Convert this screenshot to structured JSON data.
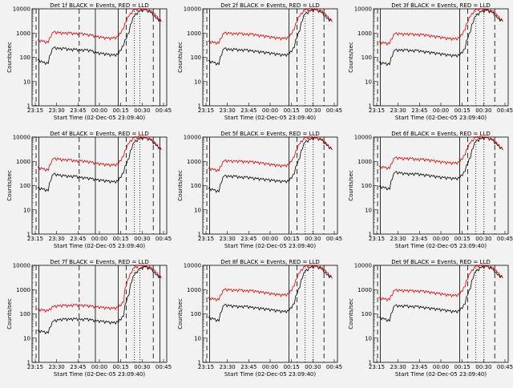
{
  "figure": {
    "background": "#f2f2f2",
    "colors": {
      "black_series": "#000000",
      "red_series": "#e00000",
      "axes": "#000000"
    }
  },
  "chart_data": [
    {
      "type": "line",
      "title": "Det  1f BLACK = Events, RED = LLD",
      "xlabel": "Start Time (02-Dec-05 23:09:40)",
      "ylabel": "Counts/sec",
      "x_ticks": [
        "23:15",
        "23:30",
        "23:45",
        "00:00",
        "00:15",
        "00:30",
        "00:45"
      ],
      "y_ticks": [
        "1",
        "10",
        "100",
        "1000",
        "10000"
      ],
      "y_scale": "log",
      "ylim": [
        1,
        10000
      ],
      "xlim_min": [
        3.7,
        100
      ],
      "series": [
        {
          "color": "black",
          "values": [
            80,
            60,
            55,
            250,
            220,
            230,
            200,
            210,
            190,
            200,
            180,
            150,
            140,
            130,
            120,
            130,
            300,
            1000,
            5000,
            8000,
            9000,
            7000,
            4000,
            3000
          ]
        },
        {
          "color": "red",
          "values": [
            500,
            450,
            400,
            1100,
            1000,
            950,
            1000,
            900,
            950,
            850,
            800,
            700,
            650,
            600,
            600,
            700,
            1500,
            5000,
            9000,
            9500,
            9000,
            8000,
            5000,
            3000
          ]
        }
      ],
      "markers": {
        "solid": [
          5,
          47,
          64,
          95
        ],
        "dashed": [
          3,
          35,
          70,
          90
        ],
        "dotted": [
          76,
          80
        ]
      }
    },
    {
      "type": "line",
      "title": "Det  2f BLACK = Events, RED = LLD",
      "xlabel": "Start Time (02-Dec-05 23:09:40)",
      "ylabel": "Counts/sec",
      "x_ticks": [
        "23:15",
        "23:30",
        "23:45",
        "00:00",
        "00:15",
        "00:30",
        "00:45"
      ],
      "y_ticks": [
        "1",
        "10",
        "100",
        "1000",
        "10000"
      ],
      "y_scale": "log",
      "ylim": [
        1,
        10000
      ],
      "series": [
        {
          "color": "black",
          "values": [
            70,
            60,
            50,
            230,
            200,
            210,
            190,
            200,
            180,
            170,
            160,
            150,
            140,
            130,
            120,
            130,
            250,
            1200,
            6000,
            8000,
            9000,
            7000,
            4000,
            3000
          ]
        },
        {
          "color": "red",
          "values": [
            450,
            400,
            380,
            1000,
            950,
            900,
            950,
            850,
            900,
            800,
            750,
            700,
            650,
            600,
            580,
            650,
            1400,
            5000,
            9000,
            9500,
            9000,
            8000,
            5000,
            3000
          ]
        }
      ],
      "markers": {
        "solid": [
          5,
          64
        ],
        "dashed": [
          3,
          70,
          90
        ],
        "dotted": [
          76,
          82
        ]
      }
    },
    {
      "type": "line",
      "title": "Det  3f BLACK = Events, RED = LLD",
      "xlabel": "Start Time (02-Dec-05 23:09:40)",
      "ylabel": "Counts/sec",
      "x_ticks": [
        "23:15",
        "23:30",
        "23:45",
        "00:00",
        "00:15",
        "00:30",
        "00:45"
      ],
      "y_ticks": [
        "1",
        "10",
        "100",
        "1000",
        "10000"
      ],
      "y_scale": "log",
      "ylim": [
        1,
        10000
      ],
      "series": [
        {
          "color": "black",
          "values": [
            60,
            55,
            50,
            200,
            190,
            200,
            180,
            190,
            170,
            160,
            150,
            140,
            130,
            120,
            115,
            120,
            220,
            1100,
            5000,
            7500,
            8500,
            7000,
            4000,
            3000
          ]
        },
        {
          "color": "red",
          "values": [
            420,
            380,
            360,
            950,
            900,
            880,
            900,
            820,
            860,
            780,
            720,
            680,
            620,
            580,
            560,
            620,
            1300,
            4800,
            9000,
            9500,
            9000,
            8000,
            5000,
            3000
          ]
        }
      ],
      "markers": {
        "solid": [
          5,
          64
        ],
        "dashed": [
          3,
          70,
          90
        ],
        "dotted": [
          76,
          82
        ]
      }
    },
    {
      "type": "line",
      "title": "Det  4f BLACK = Events, RED = LLD",
      "xlabel": "Start Time (02-Dec-05 23:09:40)",
      "ylabel": "Counts/sec",
      "x_ticks": [
        "23:15",
        "23:30",
        "23:45",
        "00:00",
        "00:15",
        "00:30",
        "00:45"
      ],
      "y_ticks": [
        "1",
        "10",
        "100",
        "1000",
        "10000"
      ],
      "y_scale": "log",
      "ylim": [
        1,
        10000
      ],
      "series": [
        {
          "color": "black",
          "values": [
            80,
            70,
            60,
            300,
            260,
            250,
            230,
            240,
            210,
            200,
            190,
            170,
            160,
            150,
            140,
            150,
            330,
            1300,
            6000,
            8500,
            9000,
            7500,
            4500,
            3000
          ]
        },
        {
          "color": "red",
          "values": [
            550,
            480,
            420,
            1300,
            1200,
            1100,
            1150,
            1000,
            1050,
            950,
            900,
            800,
            750,
            700,
            680,
            750,
            1600,
            5500,
            9500,
            9800,
            9200,
            8000,
            5000,
            3000
          ]
        }
      ],
      "markers": {
        "solid": [
          5,
          47,
          64,
          95
        ],
        "dashed": [
          3,
          35,
          70,
          90
        ],
        "dotted": [
          76,
          80
        ]
      }
    },
    {
      "type": "line",
      "title": "Det  5f BLACK = Events, RED = LLD",
      "xlabel": "Start Time (02-Dec-05 23:09:40)",
      "ylabel": "Counts/sec",
      "x_ticks": [
        "23:15",
        "23:30",
        "23:45",
        "00:00",
        "00:15",
        "00:30",
        "00:45"
      ],
      "y_ticks": [
        "1",
        "10",
        "100",
        "1000",
        "10000"
      ],
      "y_scale": "log",
      "ylim": [
        1,
        10000
      ],
      "series": [
        {
          "color": "black",
          "values": [
            75,
            65,
            55,
            250,
            230,
            240,
            210,
            220,
            200,
            190,
            180,
            170,
            160,
            150,
            145,
            150,
            300,
            1300,
            6000,
            8000,
            9000,
            7500,
            4500,
            3000
          ]
        },
        {
          "color": "red",
          "values": [
            500,
            450,
            400,
            1050,
            1000,
            980,
            1000,
            920,
            950,
            880,
            820,
            760,
            700,
            660,
            640,
            700,
            1500,
            5200,
            9200,
            9600,
            9100,
            8000,
            5000,
            3000
          ]
        }
      ],
      "markers": {
        "solid": [
          5,
          64
        ],
        "dashed": [
          3,
          70,
          90
        ],
        "dotted": [
          76,
          82
        ]
      }
    },
    {
      "type": "line",
      "title": "Det  6f BLACK = Events, RED = LLD",
      "xlabel": "Start Time (02-Dec-05 23:09:40)",
      "ylabel": "Counts/sec",
      "x_ticks": [
        "23:15",
        "23:30",
        "23:45",
        "00:00",
        "00:15",
        "00:30",
        "00:45"
      ],
      "y_ticks": [
        "1",
        "10",
        "100",
        "1000",
        "10000"
      ],
      "y_scale": "log",
      "ylim": [
        1,
        10000
      ],
      "series": [
        {
          "color": "black",
          "values": [
            90,
            80,
            70,
            350,
            320,
            300,
            290,
            300,
            270,
            260,
            240,
            220,
            210,
            200,
            190,
            200,
            380,
            1400,
            6500,
            8500,
            9200,
            7500,
            4500,
            3000
          ]
        },
        {
          "color": "red",
          "values": [
            600,
            550,
            500,
            1400,
            1300,
            1250,
            1300,
            1150,
            1200,
            1100,
            1050,
            950,
            900,
            850,
            820,
            900,
            1800,
            5800,
            9500,
            9800,
            9200,
            8000,
            5000,
            3000
          ]
        }
      ],
      "markers": {
        "solid": [
          5,
          64
        ],
        "dashed": [
          3,
          70,
          90
        ],
        "dotted": [
          76,
          82
        ]
      }
    },
    {
      "type": "line",
      "title": "Det  7f BLACK = Events, RED = LLD",
      "xlabel": "Start Time (02-Dec-05 23:09:40)",
      "ylabel": "Counts/sec",
      "x_ticks": [
        "23:15",
        "23:30",
        "23:45",
        "00:00",
        "00:15",
        "00:30",
        "00:45"
      ],
      "y_ticks": [
        "1",
        "10",
        "100",
        "1000",
        "10000"
      ],
      "y_scale": "log",
      "ylim": [
        1,
        10000
      ],
      "series": [
        {
          "color": "black",
          "values": [
            20,
            18,
            16,
            50,
            55,
            60,
            58,
            62,
            56,
            60,
            55,
            50,
            48,
            45,
            42,
            45,
            80,
            600,
            4000,
            7000,
            8500,
            7000,
            4000,
            3000
          ]
        },
        {
          "color": "red",
          "values": [
            150,
            140,
            130,
            200,
            210,
            220,
            210,
            230,
            220,
            215,
            200,
            190,
            180,
            170,
            165,
            180,
            300,
            3000,
            8000,
            9500,
            9000,
            8000,
            5000,
            3000
          ]
        }
      ],
      "markers": {
        "solid": [
          5,
          47,
          64,
          95
        ],
        "dashed": [
          3,
          35,
          70,
          90
        ],
        "dotted": [
          76,
          80
        ]
      }
    },
    {
      "type": "line",
      "title": "Det  8f BLACK = Events, RED = LLD",
      "xlabel": "Start Time (02-Dec-05 23:09:40)",
      "ylabel": "Counts/sec",
      "x_ticks": [
        "23:15",
        "23:30",
        "23:45",
        "00:00",
        "00:15",
        "00:30",
        "00:45"
      ],
      "y_ticks": [
        "1",
        "10",
        "100",
        "1000",
        "10000"
      ],
      "y_scale": "log",
      "ylim": [
        1,
        10000
      ],
      "series": [
        {
          "color": "black",
          "values": [
            70,
            60,
            50,
            230,
            210,
            200,
            190,
            200,
            180,
            170,
            160,
            150,
            140,
            130,
            120,
            130,
            260,
            1200,
            5500,
            8000,
            9000,
            7000,
            4000,
            3000
          ]
        },
        {
          "color": "red",
          "values": [
            450,
            400,
            380,
            1000,
            950,
            900,
            950,
            850,
            900,
            800,
            760,
            700,
            650,
            600,
            580,
            640,
            1400,
            5000,
            9000,
            9500,
            9000,
            8000,
            5000,
            3000
          ]
        }
      ],
      "markers": {
        "solid": [
          5,
          64
        ],
        "dashed": [
          3,
          70,
          90
        ],
        "dotted": [
          76,
          82
        ]
      }
    },
    {
      "type": "line",
      "title": "Det  9f BLACK = Events, RED = LLD",
      "xlabel": "Start Time (02-Dec-05 23:09:40)",
      "ylabel": "Counts/sec",
      "x_ticks": [
        "23:15",
        "23:30",
        "23:45",
        "00:00",
        "00:15",
        "00:30",
        "00:45"
      ],
      "y_ticks": [
        "1",
        "10",
        "100",
        "1000",
        "10000"
      ],
      "y_scale": "log",
      "ylim": [
        1,
        10000
      ],
      "series": [
        {
          "color": "black",
          "values": [
            70,
            60,
            50,
            220,
            200,
            210,
            190,
            200,
            180,
            170,
            160,
            150,
            140,
            130,
            120,
            130,
            250,
            1100,
            5500,
            8000,
            9000,
            7000,
            4000,
            3000
          ]
        },
        {
          "color": "red",
          "values": [
            450,
            400,
            380,
            950,
            900,
            880,
            900,
            820,
            860,
            780,
            720,
            680,
            620,
            580,
            560,
            620,
            1300,
            4800,
            9000,
            9500,
            9000,
            8000,
            5000,
            3000
          ]
        }
      ],
      "markers": {
        "solid": [
          5,
          64
        ],
        "dashed": [
          3,
          70,
          90
        ],
        "dotted": [
          76,
          82
        ]
      }
    }
  ]
}
